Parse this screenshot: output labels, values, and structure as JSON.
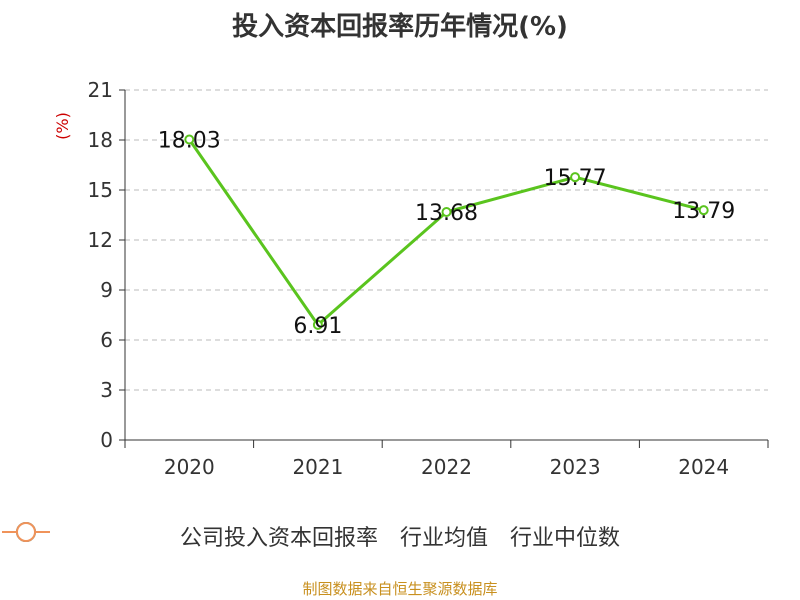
{
  "title": "投入资本回报率历年情况(%)",
  "source": "制图数据来自恒生聚源数据库",
  "colors": {
    "company": "#5ac41e",
    "industry_avg": "#4a7fd4",
    "industry_median": "#f0935a",
    "axis": "#333333",
    "grid": "#bbbbbb",
    "ylabel": "#cc0000",
    "source": "#c8901f"
  },
  "legend": [
    {
      "name": "公司投入资本回报率",
      "color": "#5ac41e",
      "icon": "circle-line-marker"
    },
    {
      "name": "行业均值",
      "color": "#4a7fd4",
      "icon": "circle-line-marker"
    },
    {
      "name": "行业中位数",
      "color": "#f0935a",
      "icon": "circle-line-marker"
    }
  ],
  "chart_data": {
    "type": "line",
    "title": "投入资本回报率历年情况(%)",
    "ylabel": "(%)",
    "xlabel": "",
    "categories": [
      "2020",
      "2021",
      "2022",
      "2023",
      "2024"
    ],
    "ylim": [
      0,
      21
    ],
    "yticks": [
      0,
      3,
      6,
      9,
      12,
      15,
      18,
      21
    ],
    "grid": true,
    "legend_position": "bottom",
    "series": [
      {
        "name": "公司投入资本回报率",
        "values": [
          18.03,
          6.91,
          13.68,
          15.77,
          13.79
        ],
        "labels": [
          "18.03",
          "6.91",
          "13.68",
          "15.77",
          "13.79"
        ]
      }
    ]
  }
}
